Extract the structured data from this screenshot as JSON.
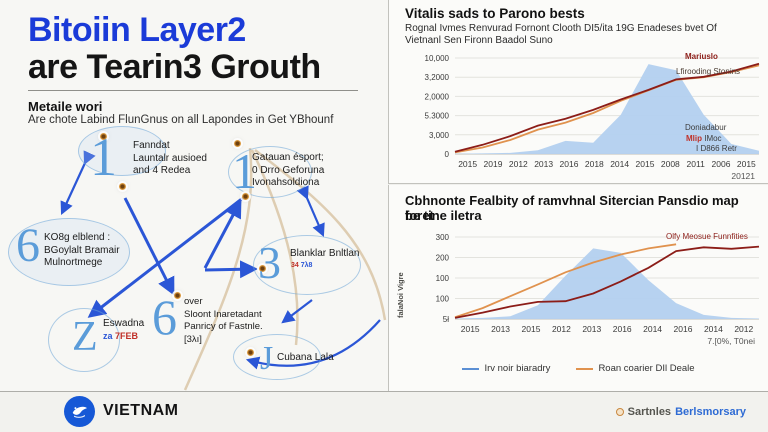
{
  "header": {
    "title_line1": "Bitoiin Layer2",
    "title_line2": "are Tearin3 Grouth"
  },
  "intro": {
    "heading": "Metaile wori",
    "subtitle": "Are chote Labind FlunGnus on all Lapondes in Get YBhounf"
  },
  "diagram": {
    "nodes": [
      {
        "digit": "1",
        "lines": [
          "Fanndat",
          "Launtalr ausioed",
          "and 4 Redea"
        ]
      },
      {
        "digit": "1",
        "lines": [
          "Gatauan ésport;",
          "0 Drro Geforuna",
          "Ivonahsoldiona"
        ]
      },
      {
        "digit": "6",
        "lines": [
          "KO8g elblend :",
          "BGoylalt Bramair",
          "Mulnortmege"
        ]
      },
      {
        "digit": "3",
        "lines": [
          "Blanklar Bnltlan"
        ],
        "sub_red": "34",
        "sub_blue": "7λ8"
      },
      {
        "digit": "Z",
        "lines": [
          "Eswadna"
        ],
        "sub_blue": "za",
        "sub_red": "7FEB"
      },
      {
        "digit": "6",
        "lines": [
          "over",
          "Sloont Inaretadant",
          "Panricy of Fastnle.",
          "[3λı]"
        ]
      },
      {
        "digit": "J",
        "lines": [
          "Cubana Lala"
        ]
      }
    ]
  },
  "top_panel": {
    "title": "Vitalis sads to Parono bests",
    "subtitle1": "Rognal Ivmes Renvurad Fornont Clooth DI5/ita 19G Enadeses bvet Of",
    "subtitle2": "Vietnanl Sen Fironn Baadol Suno",
    "ann_mariuslo": "Mariuslo",
    "ann_lfirooding": "Lfirooding Stonins",
    "ann_doniadabur": "Doniadabur",
    "ann_mlip": "Mlip",
    "ann_imoc": " IMoc",
    "ann_d866": "I D866 Retr"
  },
  "bottom_panel": {
    "title1": "Cbhnonte Fealbity of ramvhnal Sitercian Pansdio map foret",
    "title2": "be tine iletra",
    "ann_series": "Olfy Meosue Funnfities",
    "ylabel": "falaNoi Vigre",
    "legend": [
      {
        "label": "Irv noir biaradry",
        "color": "#5b8fd4"
      },
      {
        "label": "Roan coarier DIl Deale",
        "color": "#e0924e"
      }
    ]
  },
  "footer": {
    "brand": "VIETNAM",
    "credit_left": "Sartnles",
    "credit_right": "Berlsmorsary"
  },
  "chart_data": [
    {
      "type": "area",
      "title": "Vitalis sads to Parono bests",
      "x_tick_labels": [
        "2015",
        "2019",
        "2012",
        "2013",
        "2016",
        "2018",
        "2014",
        "2015",
        "2008",
        "2011",
        "2006",
        "2015"
      ],
      "x_extra_label": "20121",
      "y_tick_labels": [
        "10,000",
        "3,2000",
        "2,0000",
        "5.3000",
        "3,000",
        "0"
      ],
      "ylim": [
        0,
        11000
      ],
      "grid": true,
      "legend_position": "in-plot-right",
      "series": [
        {
          "name": "area",
          "kind": "area",
          "color": "#b3d0ef",
          "values": [
            40,
            70,
            130,
            420,
            1500,
            1300,
            4500,
            10300,
            9600,
            4500,
            1150,
            380
          ]
        },
        {
          "name": "Lfirooding Stonins",
          "kind": "line",
          "color": "#e0924e",
          "values": [
            180,
            750,
            1600,
            2800,
            3600,
            4700,
            6100,
            7300,
            8500,
            8800,
            9400,
            10150
          ]
        },
        {
          "name": "Mariuslo",
          "kind": "line",
          "color": "#8c1d18",
          "values": [
            260,
            1050,
            2050,
            3250,
            4050,
            5050,
            6250,
            7350,
            8550,
            8850,
            9450,
            10350
          ]
        }
      ]
    },
    {
      "type": "area",
      "title": "Cbhnonte Fealbity of ramvhnal Sitercian Pansdio map foret be tine iletra",
      "x_tick_labels": [
        "2015",
        "2013",
        "2015",
        "2012",
        "2013",
        "2016",
        "2014",
        "2016",
        "2014",
        "2012"
      ],
      "x_extra_label": "7.[0%, T0nei",
      "y_tick_labels": [
        "300",
        "200",
        "100",
        "100",
        "5ł"
      ],
      "ylim": [
        0,
        360
      ],
      "ylabel": "falaNoi Vigre",
      "grid": true,
      "legend_position": "bottom",
      "series": [
        {
          "name": "Irv noir biaradry",
          "kind": "area",
          "color": "#b3d0ef",
          "values": [
            2,
            5,
            12,
            60,
            190,
            310,
            290,
            170,
            70,
            18,
            5,
            2
          ]
        },
        {
          "name": "Roan coarier DIl Deale",
          "kind": "line",
          "color": "#e0924e",
          "values": [
            8,
            48,
            100,
            152,
            205,
            248,
            283,
            310,
            328,
            null,
            null,
            null
          ]
        },
        {
          "name": "Olfy Meosue Funnfities",
          "kind": "line",
          "color": "#8c1d18",
          "values": [
            5,
            28,
            55,
            75,
            78,
            112,
            165,
            225,
            298,
            315,
            308,
            318
          ]
        }
      ]
    }
  ]
}
